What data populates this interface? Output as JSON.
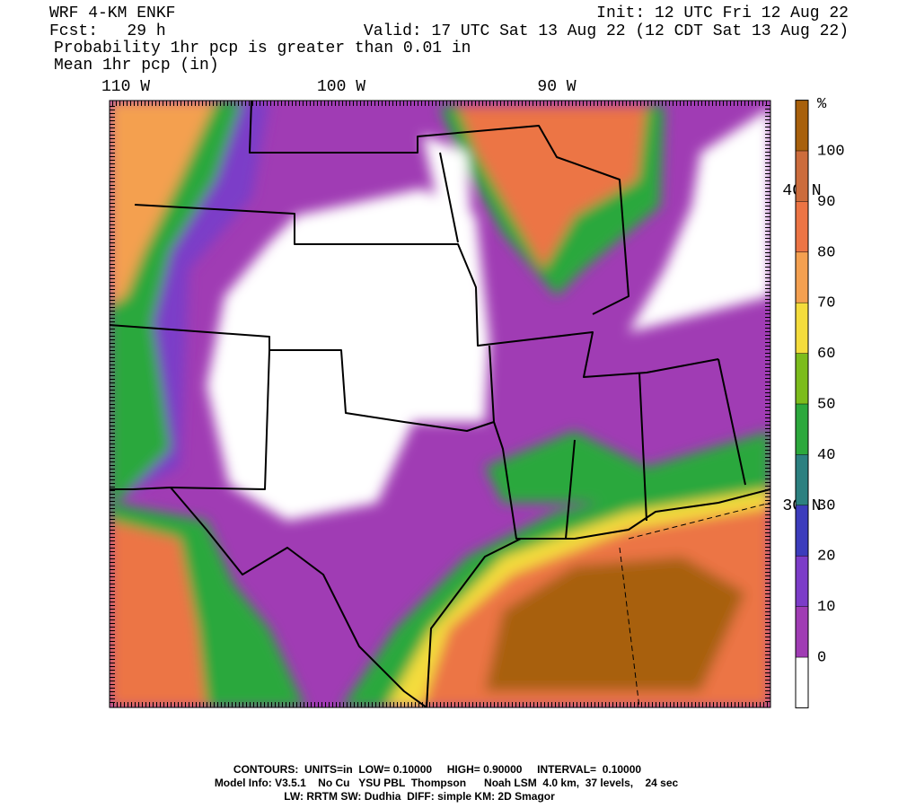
{
  "header": {
    "title": "WRF 4-KM ENKF",
    "forecast": "Fcst:   29 h",
    "product": "Probability 1hr pcp is greater than 0.01 in",
    "overlay": "Mean 1hr pcp (in)",
    "init": "Init: 12 UTC Fri 12 Aug 22",
    "valid": "Valid: 17 UTC Sat 13 Aug 22 (12 CDT Sat 13 Aug 22)"
  },
  "map": {
    "longitude_labels": [
      "110 W",
      "100 W",
      "90 W"
    ],
    "latitude_labels": [
      "40 N",
      "30 N"
    ]
  },
  "colorbar": {
    "unit": "%",
    "levels": [
      0,
      10,
      20,
      30,
      40,
      50,
      60,
      70,
      80,
      90,
      100
    ],
    "colors": [
      "#ffffff",
      "#a03cb4",
      "#7c3cc8",
      "#3c3cbc",
      "#2c8080",
      "#2ca83c",
      "#7cbc1c",
      "#f4dc3c",
      "#f4a050",
      "#ec7444",
      "#cc6c3c",
      "#a8600c"
    ]
  },
  "footer": [
    "CONTOURS:  UNITS=in  LOW= 0.10000     HIGH= 0.90000     INTERVAL=  0.10000",
    "Model Info: V3.5.1    No Cu   YSU PBL  Thompson      Noah LSM  4.0 km,  37 levels,    24 sec",
    "LW: RRTM SW: Dudhia  DIFF: simple KM: 2D Smagor"
  ]
}
